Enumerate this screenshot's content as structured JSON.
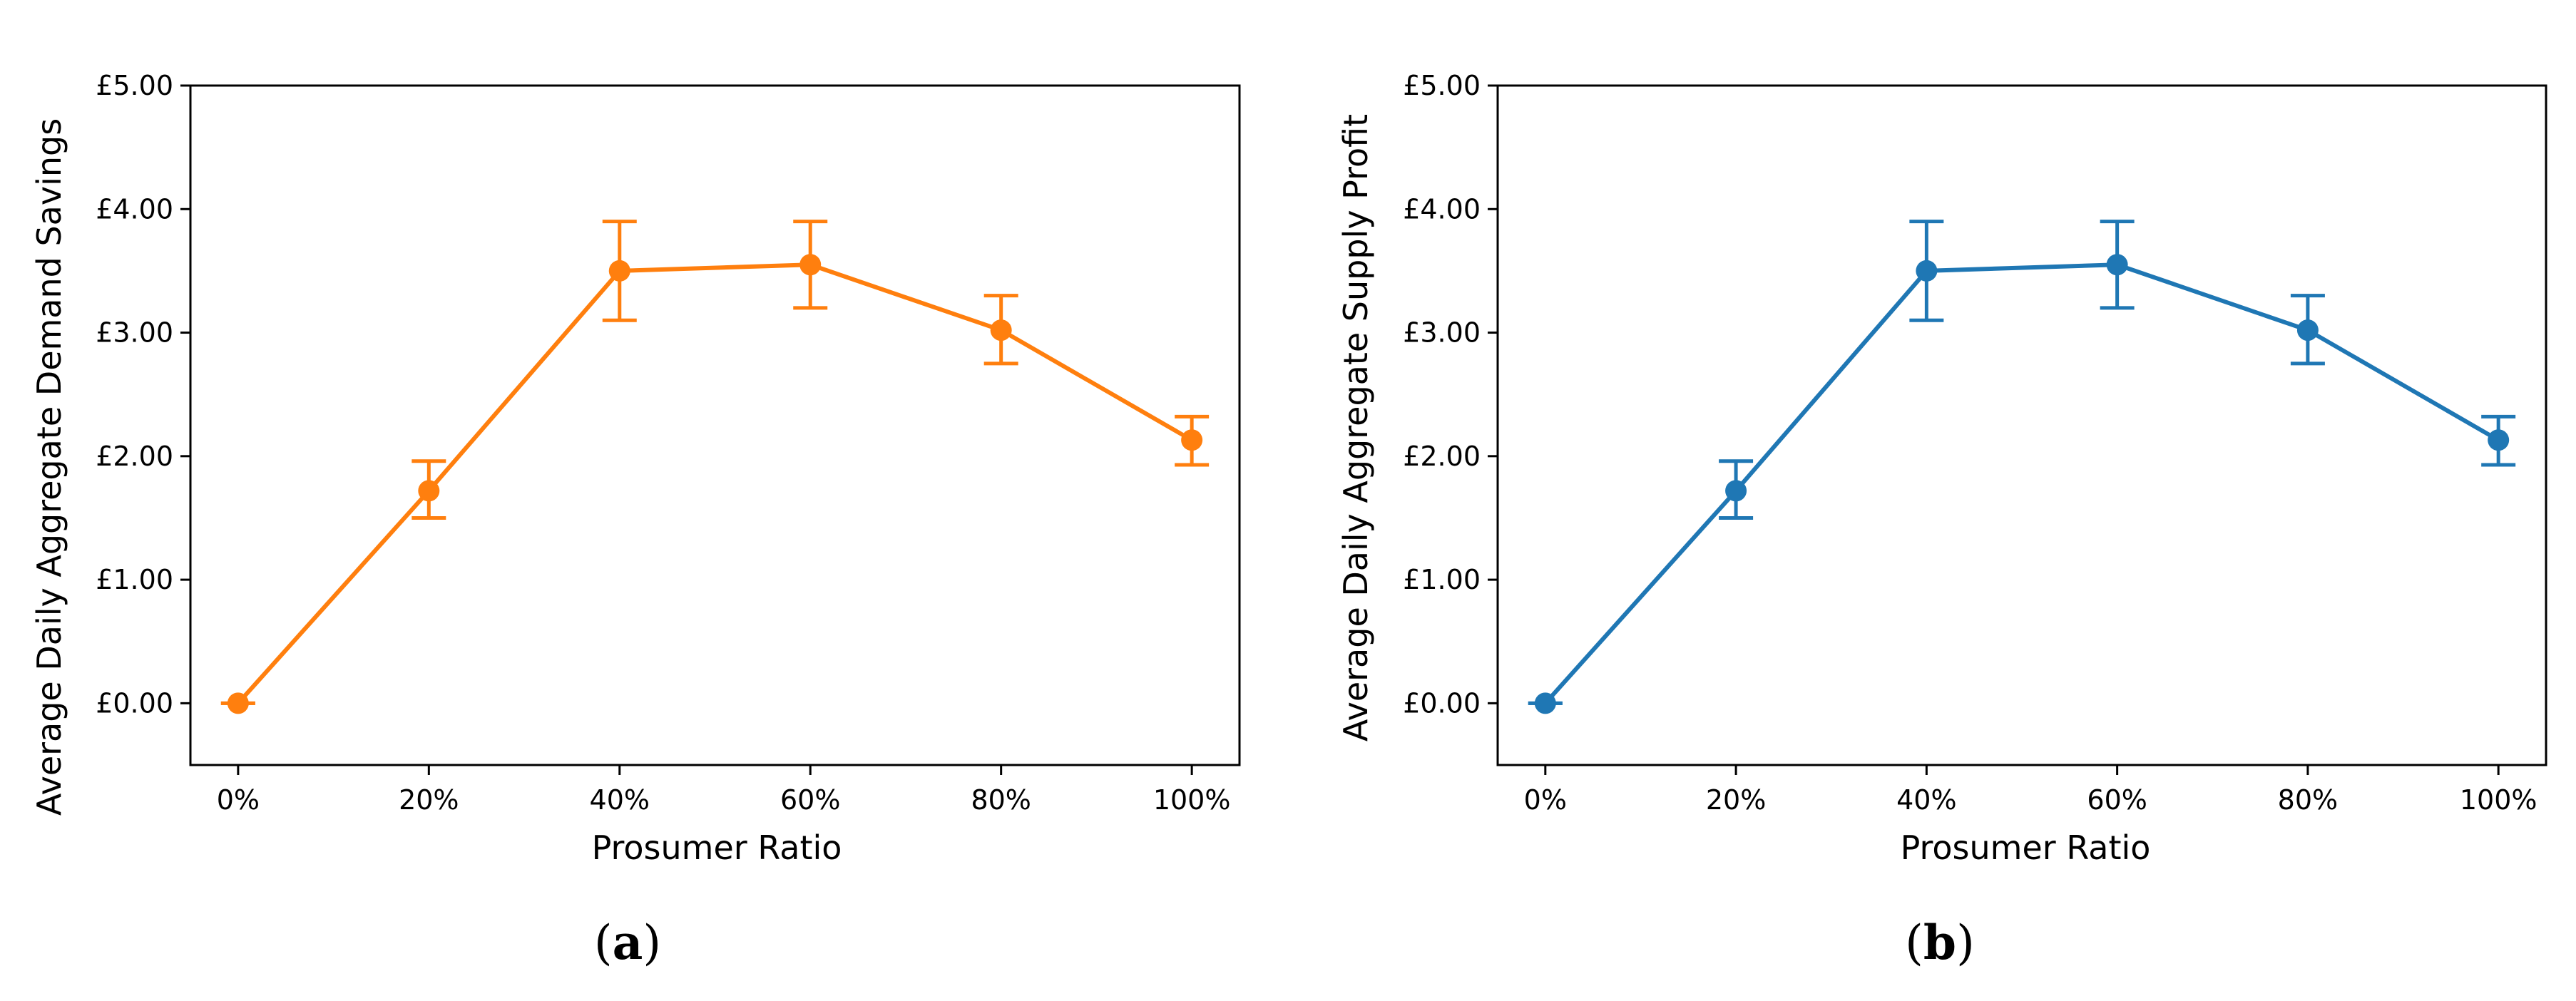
{
  "chart_data": [
    {
      "type": "line",
      "panel_label": "a",
      "xlabel": "Prosumer Ratio",
      "ylabel": "Average Daily Aggregate Demand Savings",
      "categories": [
        "0%",
        "20%",
        "40%",
        "60%",
        "80%",
        "100%"
      ],
      "x": [
        0,
        20,
        40,
        60,
        80,
        100
      ],
      "series": [
        {
          "name": "Demand Savings",
          "color": "#ff7f0e",
          "values": [
            0.0,
            1.72,
            3.5,
            3.55,
            3.02,
            2.13
          ],
          "err_low": [
            0.0,
            1.5,
            3.1,
            3.2,
            2.75,
            1.93
          ],
          "err_high": [
            0.0,
            1.96,
            3.9,
            3.9,
            3.3,
            2.32
          ]
        }
      ],
      "xlim": [
        -5,
        105
      ],
      "ylim": [
        -0.5,
        5.0
      ],
      "yticks": [
        0,
        1,
        2,
        3,
        4,
        5
      ],
      "ytick_labels": [
        "£0.00",
        "£1.00",
        "£2.00",
        "£3.00",
        "£4.00",
        "£5.00"
      ],
      "grid": false
    },
    {
      "type": "line",
      "panel_label": "b",
      "xlabel": "Prosumer Ratio",
      "ylabel": "Average Daily Aggregate Supply Profit",
      "categories": [
        "0%",
        "20%",
        "40%",
        "60%",
        "80%",
        "100%"
      ],
      "x": [
        0,
        20,
        40,
        60,
        80,
        100
      ],
      "series": [
        {
          "name": "Supply Profit",
          "color": "#1f77b4",
          "values": [
            0.0,
            1.72,
            3.5,
            3.55,
            3.02,
            2.13
          ],
          "err_low": [
            0.0,
            1.5,
            3.1,
            3.2,
            2.75,
            1.93
          ],
          "err_high": [
            0.0,
            1.96,
            3.9,
            3.9,
            3.3,
            2.32
          ]
        }
      ],
      "xlim": [
        -5,
        105
      ],
      "ylim": [
        -0.5,
        5.0
      ],
      "yticks": [
        0,
        1,
        2,
        3,
        4,
        5
      ],
      "ytick_labels": [
        "£0.00",
        "£1.00",
        "£2.00",
        "£3.00",
        "£4.00",
        "£5.00"
      ],
      "grid": false
    }
  ],
  "captions": {
    "a": {
      "open": "(",
      "letter": "a",
      "close": ")"
    },
    "b": {
      "open": "(",
      "letter": "b",
      "close": ")"
    }
  }
}
